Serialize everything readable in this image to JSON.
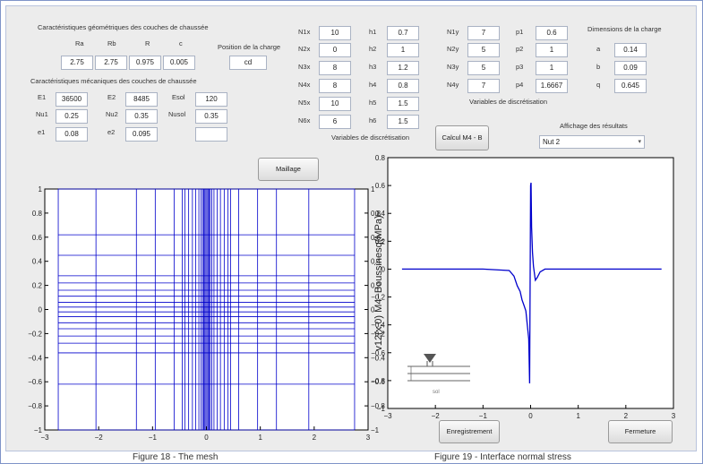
{
  "geom": {
    "title": "Caractéristiques géométriques des couches de chaussée",
    "headers": [
      "Ra",
      "Rb",
      "R",
      "c"
    ],
    "values": [
      "2.75",
      "2.75",
      "0.975",
      "0.005"
    ]
  },
  "position": {
    "label": "Position de la charge",
    "value": "cd"
  },
  "mech": {
    "title": "Caractéristiques mécaniques des couches de chaussée",
    "E1": {
      "label": "E1",
      "value": "36500"
    },
    "Nu1": {
      "label": "Nu1",
      "value": "0.25"
    },
    "e1": {
      "label": "e1",
      "value": "0.08"
    },
    "E2": {
      "label": "E2",
      "value": "8485"
    },
    "Nu2": {
      "label": "Nu2",
      "value": "0.35"
    },
    "e2": {
      "label": "e2",
      "value": "0.095"
    },
    "Esol": {
      "label": "Esol",
      "value": "120"
    },
    "Nusol": {
      "label": "Nusol",
      "value": "0.35"
    },
    "blank": ""
  },
  "discx": {
    "N": [
      {
        "label": "N1x",
        "value": "10"
      },
      {
        "label": "N2x",
        "value": "0"
      },
      {
        "label": "N3x",
        "value": "8"
      },
      {
        "label": "N4x",
        "value": "8"
      },
      {
        "label": "N5x",
        "value": "10"
      },
      {
        "label": "N6x",
        "value": "6"
      }
    ],
    "h": [
      {
        "label": "h1",
        "value": "0.7"
      },
      {
        "label": "h2",
        "value": "1"
      },
      {
        "label": "h3",
        "value": "1.2"
      },
      {
        "label": "h4",
        "value": "0.8"
      },
      {
        "label": "h5",
        "value": "1.5"
      },
      {
        "label": "h6",
        "value": "1.5"
      }
    ],
    "caption": "Variables de discrétisation"
  },
  "discy": {
    "N": [
      {
        "label": "N1y",
        "value": "7"
      },
      {
        "label": "N2y",
        "value": "5"
      },
      {
        "label": "N3y",
        "value": "5"
      },
      {
        "label": "N4y",
        "value": "7"
      }
    ],
    "p": [
      {
        "label": "p1",
        "value": "0.6"
      },
      {
        "label": "p2",
        "value": "1"
      },
      {
        "label": "p3",
        "value": "1"
      },
      {
        "label": "p4",
        "value": "1.6667"
      }
    ],
    "caption": "Variables de discrétisation"
  },
  "load": {
    "title": "Dimensions de la charge",
    "items": [
      {
        "label": "a",
        "value": "0.14"
      },
      {
        "label": "b",
        "value": "0.09"
      },
      {
        "label": "q",
        "value": "0.645"
      }
    ]
  },
  "buttons": {
    "calcul": "Calcul M4 - B",
    "maillage": "Maillage",
    "enregistrement": "Enregistrement",
    "fermeture": "Fermeture"
  },
  "display": {
    "label": "Affichage des résultats",
    "selected": "Nut 2"
  },
  "captions": {
    "fig18": "Figure 18 - The mesh",
    "fig19": "Figure 19 - Interface normal stress"
  },
  "schematic": {
    "label": "sol"
  },
  "chart_data": [
    {
      "type": "line",
      "name": "mesh",
      "title": "",
      "xlim": [
        -3,
        3
      ],
      "ylim": [
        -1,
        1
      ],
      "x_ticks": [
        -3,
        -2,
        -1,
        0,
        1,
        2,
        3
      ],
      "y_ticks": [
        -1,
        -0.8,
        -0.6,
        -0.4,
        -0.2,
        0,
        0.2,
        0.4,
        0.6,
        0.8,
        1
      ],
      "y_ticks_right": [
        -1,
        -0.8,
        -0.6,
        -0.4,
        -0.2,
        0,
        0.2,
        0.4,
        0.6,
        0.8,
        1
      ],
      "vertical_lines": [
        -2.75,
        -2.05,
        -1.3,
        -0.95,
        -0.6,
        -0.45,
        -0.4,
        -0.33,
        -0.26,
        -0.2,
        -0.14,
        -0.1,
        -0.07,
        -0.05,
        -0.03,
        -0.01,
        0.01,
        0.03,
        0.05,
        0.07,
        0.1,
        0.14,
        0.2,
        0.26,
        0.33,
        0.4,
        0.45,
        0.6,
        0.95,
        1.3,
        1.9,
        2.75
      ],
      "horizontal_lines": [
        -1,
        -0.62,
        -0.36,
        -0.28,
        -0.22,
        -0.16,
        -0.11,
        -0.06,
        -0.02,
        0.02,
        0.06,
        0.11,
        0.16,
        0.22,
        0.28,
        0.45,
        0.62,
        1
      ],
      "color": "#0000cc"
    },
    {
      "type": "line",
      "title": "",
      "ylabel": "v12(x,0) M4−Boussinesq(MPa)",
      "xlim": [
        -3,
        3
      ],
      "ylim": [
        -1,
        0.8
      ],
      "x_ticks": [
        -3,
        -2,
        -1,
        0,
        1,
        2,
        3
      ],
      "y_ticks": [
        -1,
        -0.8,
        -0.6,
        -0.4,
        -0.2,
        0,
        0.2,
        0.4,
        0.6,
        0.8
      ],
      "x": [
        -2.7,
        -1.0,
        -0.45,
        -0.35,
        -0.28,
        -0.22,
        -0.18,
        -0.14,
        -0.1,
        -0.07,
        -0.04,
        -0.02,
        0.0,
        0.01,
        0.02,
        0.04,
        0.06,
        0.1,
        0.14,
        0.2,
        0.3,
        0.5,
        1.0,
        2.75
      ],
      "y": [
        0.0,
        0.0,
        -0.01,
        -0.05,
        -0.12,
        -0.16,
        -0.22,
        -0.26,
        -0.3,
        -0.4,
        -0.5,
        -0.82,
        0.6,
        0.62,
        0.3,
        0.12,
        0.02,
        -0.08,
        -0.06,
        -0.02,
        0.0,
        0.0,
        0.0,
        0.0
      ],
      "color": "#0000cc"
    }
  ]
}
